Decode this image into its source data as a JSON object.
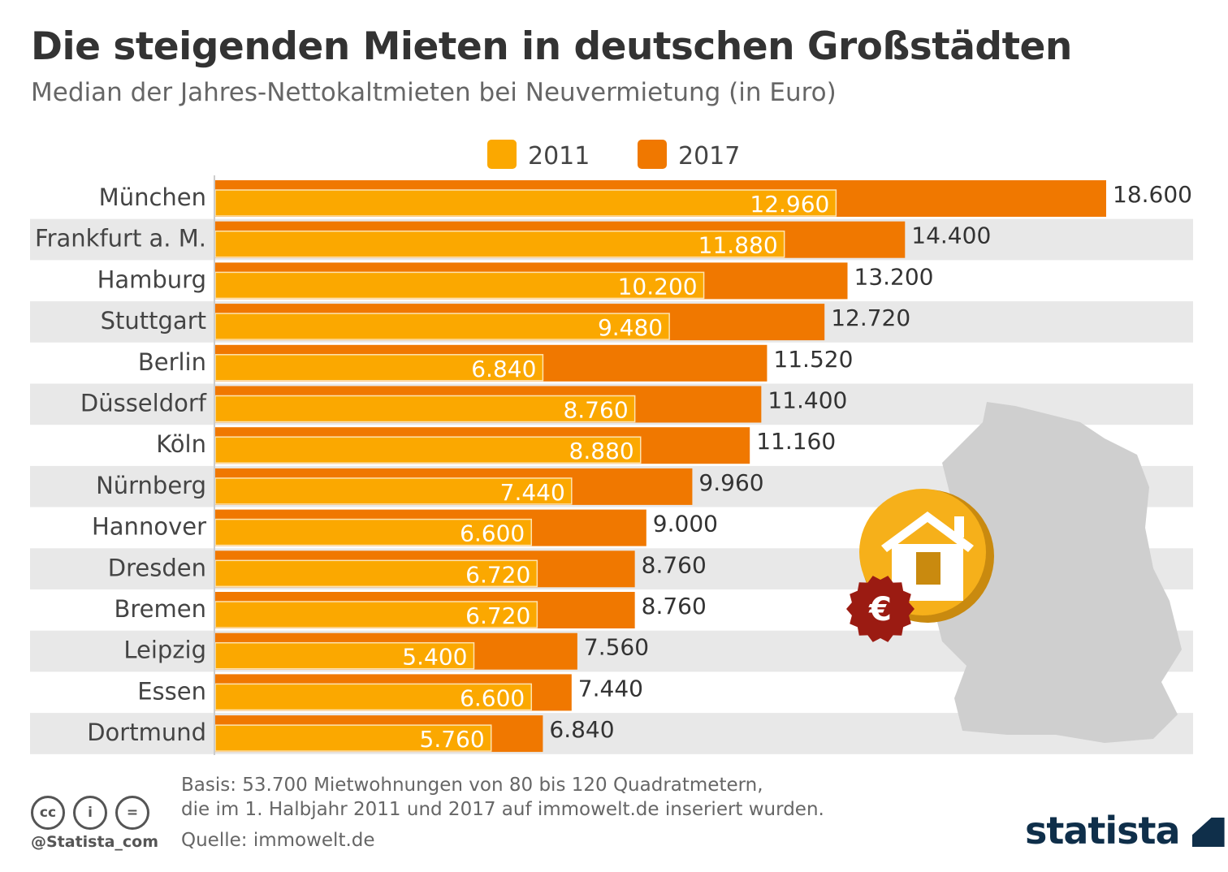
{
  "chart_data": {
    "type": "bar",
    "orientation": "horizontal",
    "title": "Die steigenden Mieten in deutschen Großstädten",
    "subtitle": "Median der Jahres-Nettokaltmieten bei Neuvermietung (in Euro)",
    "categories": [
      "München",
      "Frankfurt a. M.",
      "Hamburg",
      "Stuttgart",
      "Berlin",
      "Düsseldorf",
      "Köln",
      "Nürnberg",
      "Hannover",
      "Dresden",
      "Bremen",
      "Leipzig",
      "Essen",
      "Dortmund"
    ],
    "series": [
      {
        "name": "2011",
        "color": "#fba800",
        "values": [
          12960,
          11880,
          10200,
          9480,
          6840,
          8760,
          8880,
          7440,
          6600,
          6720,
          6720,
          5400,
          6600,
          5760
        ],
        "labels": [
          "12.960",
          "11.880",
          "10.200",
          "9.480",
          "6.840",
          "8.760",
          "8.880",
          "7.440",
          "6.600",
          "6.720",
          "6.720",
          "5.400",
          "6.600",
          "5.760"
        ]
      },
      {
        "name": "2017",
        "color": "#f07800",
        "values": [
          18600,
          14400,
          13200,
          12720,
          11520,
          11400,
          11160,
          9960,
          9000,
          8760,
          8760,
          7560,
          7440,
          6840
        ],
        "labels": [
          "18.600",
          "14.400",
          "13.200",
          "12.720",
          "11.520",
          "11.400",
          "11.160",
          "9.960",
          "9.000",
          "8.760",
          "8.760",
          "7.560",
          "7.440",
          "6.840"
        ]
      }
    ],
    "xlim": [
      0,
      18600
    ],
    "legend": "top-center",
    "grid": false
  },
  "footer": {
    "basis_line1": "Basis: 53.700 Mietwohnungen von 80 bis 120 Quadratmetern,",
    "basis_line2": "die im 1. Halbjahr 2011 und 2017 auf immowelt.de inseriert wurden.",
    "source": "Quelle: immowelt.de",
    "handle": "@Statista_com",
    "logo": "statista"
  },
  "icons": [
    "cc-icon",
    "by-icon",
    "nd-icon",
    "germany-map",
    "house-icon",
    "euro-badge-icon"
  ]
}
